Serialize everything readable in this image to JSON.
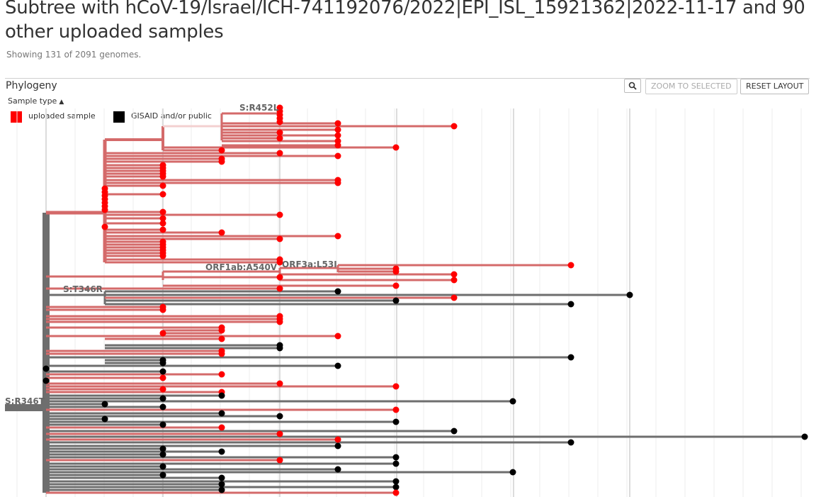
{
  "header": {
    "title": "Subtree with hCoV-19/Israel/ICH-741192076/2022|EPI_ISL_15921362|2022-11-17 and 90 other uploaded samples",
    "subtitle": "Showing 131 of 2091 genomes."
  },
  "panel": {
    "title": "Phylogeny",
    "zoom_selected_label": "ZOOM TO SELECTED",
    "reset_layout_label": "RESET LAYOUT",
    "zoom_icon": "magnifier-icon"
  },
  "legend": {
    "title": "Sample type",
    "toggle_icon": "chevron-up-icon",
    "items": [
      {
        "label": "uploaded sample",
        "color": "#ff0000"
      },
      {
        "label": "GISAID and/or public",
        "color": "#000000"
      }
    ]
  },
  "colors": {
    "uploaded_branch": "#d46a6a",
    "public_branch": "#6e6e6e",
    "uploaded_node": "#ff0000",
    "public_node": "#000000",
    "gridline": "#e6e6e6"
  },
  "mutation_labels": [
    "S:R452L",
    "ORF1ab:A540V",
    "ORF3a:L53I",
    "S:T346R",
    "S:R346T"
  ]
}
